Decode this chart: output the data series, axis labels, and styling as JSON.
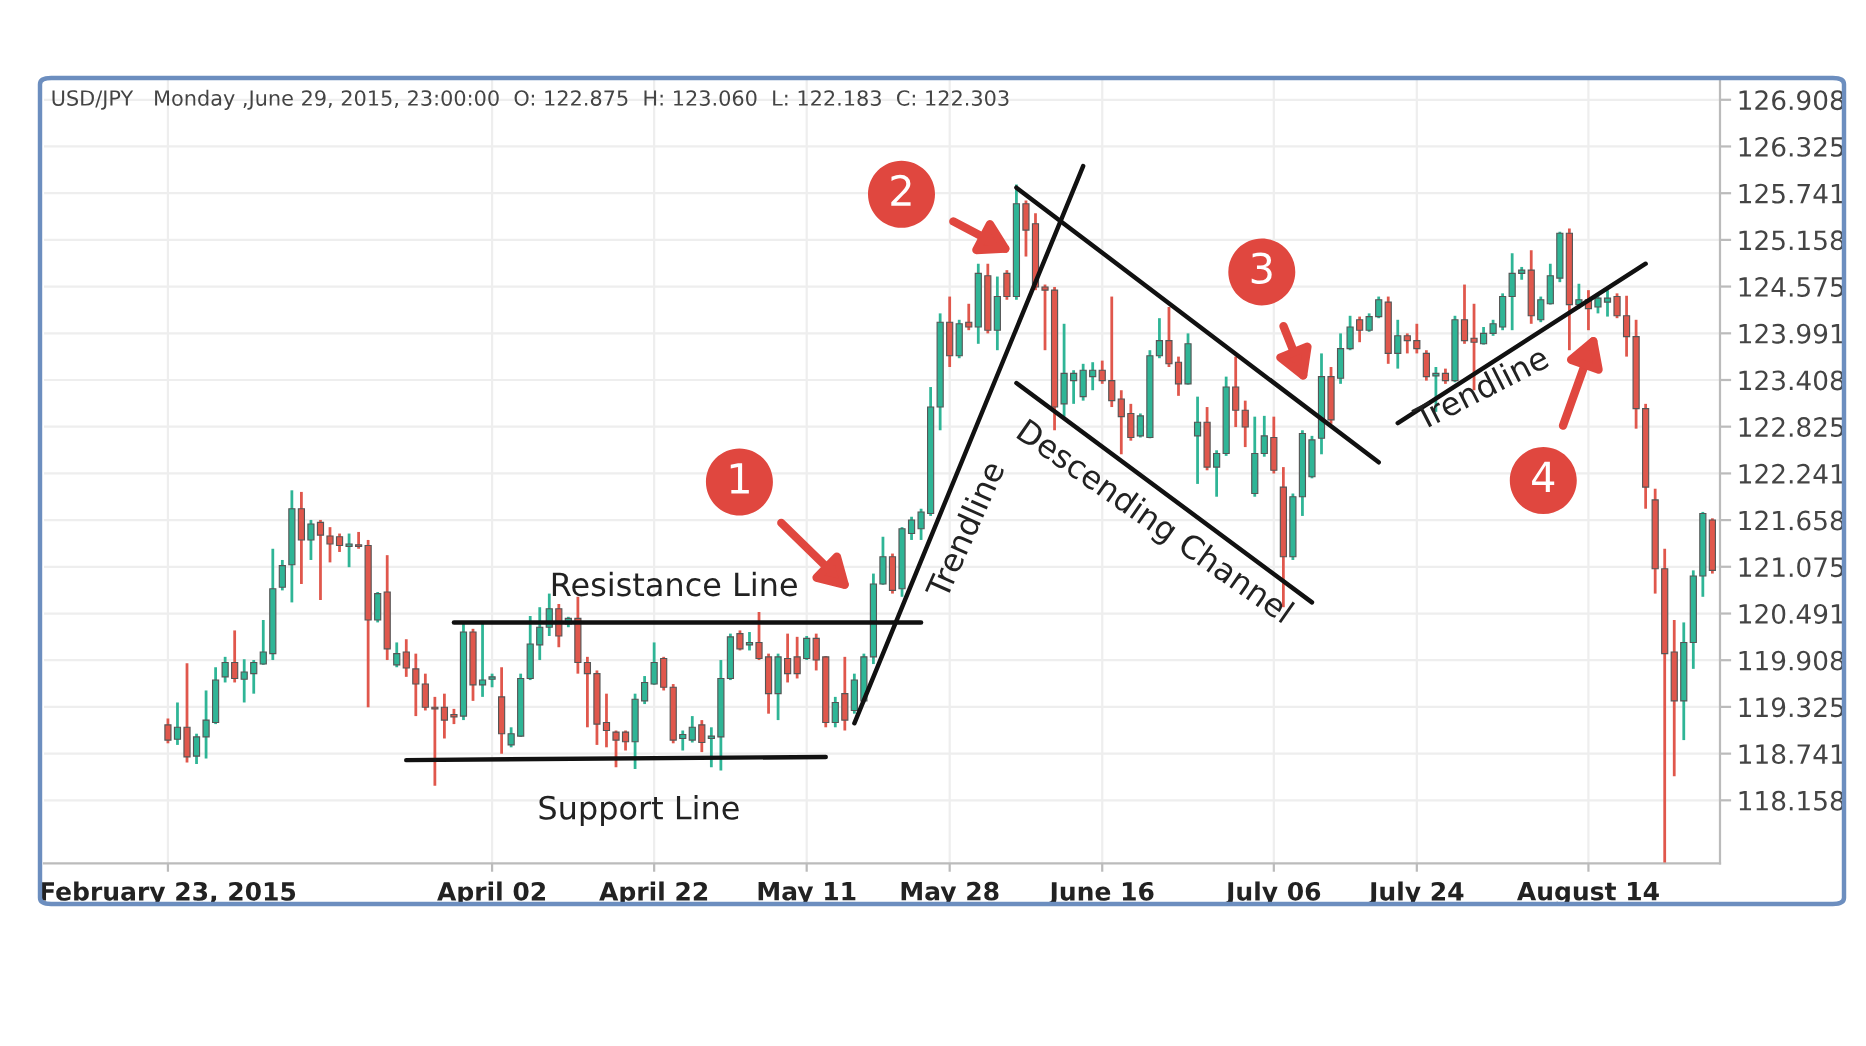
{
  "chart_data": {
    "type": "candlestick",
    "title": "USD/JPY   Monday ,June 29, 2015, 23:00:00  O: 122.875  H: 123.060  L: 122.183  C: 122.303",
    "categories": [
      "February 23, 2015",
      null,
      null,
      null,
      null,
      null,
      null,
      null,
      null,
      null,
      null,
      null,
      null,
      null,
      null,
      null,
      null,
      null,
      null,
      null,
      null,
      null,
      null,
      null,
      null,
      null,
      null,
      null,
      null,
      null,
      null,
      null,
      null,
      null,
      "April 02",
      null,
      null,
      null,
      null,
      null,
      null,
      null,
      null,
      null,
      null,
      null,
      null,
      null,
      null,
      null,
      null,
      "April 22",
      null,
      null,
      null,
      null,
      null,
      null,
      null,
      null,
      null,
      null,
      null,
      null,
      null,
      null,
      null,
      "May 11",
      null,
      null,
      null,
      null,
      null,
      null,
      null,
      null,
      null,
      null,
      null,
      null,
      null,
      null,
      "May 28",
      null,
      null,
      null,
      null,
      null,
      null,
      null,
      null,
      null,
      null,
      null,
      null,
      null,
      null,
      null,
      "June 16",
      null,
      null,
      null,
      null,
      null,
      null,
      null,
      null,
      null,
      null,
      null,
      null,
      null,
      null,
      null,
      null,
      null,
      "July 06",
      null,
      null,
      null,
      null,
      null,
      null,
      null,
      null,
      null,
      null,
      null,
      null,
      null,
      null,
      "July 24",
      null,
      null,
      null,
      null,
      null,
      null,
      null,
      null,
      null,
      null,
      null,
      null,
      null,
      null,
      null,
      null,
      null,
      "August 14",
      null,
      null,
      null,
      null,
      null,
      null,
      null,
      null,
      null,
      null,
      null,
      null,
      null
    ],
    "ohlc": [
      [
        119.1,
        119.18,
        118.87,
        118.91
      ],
      [
        118.92,
        119.38,
        118.85,
        119.07
      ],
      [
        119.07,
        119.87,
        118.63,
        118.7
      ],
      [
        118.71,
        118.99,
        118.61,
        118.95
      ],
      [
        118.95,
        119.53,
        118.68,
        119.16
      ],
      [
        119.13,
        119.82,
        119.11,
        119.66
      ],
      [
        119.7,
        119.95,
        119.63,
        119.88
      ],
      [
        119.88,
        120.28,
        119.63,
        119.68
      ],
      [
        119.67,
        119.92,
        119.38,
        119.76
      ],
      [
        119.74,
        119.91,
        119.49,
        119.88
      ],
      [
        119.86,
        120.41,
        119.85,
        120.01
      ],
      [
        119.99,
        121.3,
        119.91,
        120.8
      ],
      [
        120.82,
        121.16,
        120.78,
        121.09
      ],
      [
        121.1,
        122.03,
        120.63,
        121.8
      ],
      [
        121.8,
        122.01,
        120.86,
        121.41
      ],
      [
        121.41,
        121.66,
        121.16,
        121.61
      ],
      [
        121.63,
        121.66,
        120.66,
        121.47
      ],
      [
        121.46,
        121.57,
        121.13,
        121.36
      ],
      [
        121.45,
        121.49,
        121.26,
        121.34
      ],
      [
        121.33,
        121.49,
        121.07,
        121.36
      ],
      [
        121.35,
        121.51,
        121.3,
        121.33
      ],
      [
        121.34,
        121.41,
        119.32,
        120.41
      ],
      [
        120.41,
        120.76,
        120.38,
        120.74
      ],
      [
        120.76,
        121.22,
        119.91,
        120.05
      ],
      [
        119.85,
        120.13,
        119.82,
        119.99
      ],
      [
        120.01,
        120.17,
        119.7,
        119.81
      ],
      [
        119.8,
        119.99,
        119.21,
        119.61
      ],
      [
        119.61,
        119.74,
        119.28,
        119.32
      ],
      [
        119.32,
        119.45,
        118.34,
        119.3
      ],
      [
        119.32,
        119.49,
        118.93,
        119.16
      ],
      [
        119.23,
        119.3,
        119.11,
        119.2
      ],
      [
        119.21,
        120.36,
        119.16,
        120.26
      ],
      [
        120.26,
        120.3,
        119.4,
        119.6
      ],
      [
        119.6,
        120.36,
        119.45,
        119.66
      ],
      [
        119.67,
        119.74,
        119.57,
        119.7
      ],
      [
        119.45,
        119.82,
        118.74,
        118.99
      ],
      [
        118.85,
        119.07,
        118.82,
        118.99
      ],
      [
        118.96,
        119.74,
        118.95,
        119.68
      ],
      [
        119.68,
        120.46,
        119.66,
        120.11
      ],
      [
        120.1,
        120.57,
        119.91,
        120.32
      ],
      [
        120.32,
        120.74,
        120.21,
        120.55
      ],
      [
        120.55,
        120.61,
        120.07,
        120.21
      ],
      [
        120.36,
        120.45,
        120.32,
        120.43
      ],
      [
        120.43,
        120.7,
        119.74,
        119.88
      ],
      [
        119.88,
        119.95,
        119.07,
        119.74
      ],
      [
        119.74,
        119.78,
        118.85,
        119.11
      ],
      [
        119.13,
        119.49,
        118.82,
        119.03
      ],
      [
        119.01,
        119.03,
        118.57,
        118.91
      ],
      [
        119.01,
        119.03,
        118.78,
        118.89
      ],
      [
        118.89,
        119.49,
        118.55,
        119.42
      ],
      [
        119.4,
        119.71,
        119.36,
        119.63
      ],
      [
        119.61,
        120.13,
        119.6,
        119.88
      ],
      [
        119.93,
        119.95,
        119.53,
        119.57
      ],
      [
        119.57,
        119.61,
        118.87,
        118.91
      ],
      [
        118.93,
        119.03,
        118.78,
        118.98
      ],
      [
        118.91,
        119.21,
        118.88,
        119.07
      ],
      [
        119.1,
        119.16,
        118.76,
        118.88
      ],
      [
        118.93,
        119.07,
        118.57,
        118.96
      ],
      [
        118.95,
        119.91,
        118.53,
        119.68
      ],
      [
        119.68,
        120.24,
        119.66,
        120.2
      ],
      [
        120.24,
        120.28,
        120.03,
        120.05
      ],
      [
        120.1,
        120.26,
        120.03,
        120.13
      ],
      [
        120.13,
        120.51,
        119.91,
        119.93
      ],
      [
        119.95,
        119.99,
        119.24,
        119.49
      ],
      [
        119.49,
        119.99,
        119.16,
        119.95
      ],
      [
        119.93,
        120.24,
        119.63,
        119.74
      ],
      [
        119.95,
        120.2,
        119.68,
        119.74
      ],
      [
        119.93,
        120.21,
        119.91,
        120.18
      ],
      [
        120.18,
        120.24,
        119.78,
        119.91
      ],
      [
        119.95,
        119.96,
        119.07,
        119.13
      ],
      [
        119.13,
        119.45,
        119.07,
        119.38
      ],
      [
        119.49,
        119.95,
        119.03,
        119.16
      ],
      [
        119.28,
        119.74,
        119.24,
        119.66
      ],
      [
        119.4,
        119.99,
        119.38,
        119.95
      ],
      [
        119.95,
        120.99,
        119.86,
        120.86
      ],
      [
        120.86,
        121.45,
        120.85,
        121.2
      ],
      [
        121.2,
        121.24,
        120.74,
        120.78
      ],
      [
        120.8,
        121.57,
        120.7,
        121.55
      ],
      [
        121.49,
        121.7,
        121.41,
        121.66
      ],
      [
        121.55,
        121.8,
        121.41,
        121.76
      ],
      [
        121.74,
        123.32,
        121.71,
        123.07
      ],
      [
        123.07,
        124.24,
        122.78,
        124.13
      ],
      [
        124.13,
        124.45,
        123.57,
        123.71
      ],
      [
        123.71,
        124.16,
        123.68,
        124.11
      ],
      [
        124.13,
        124.36,
        124.03,
        124.07
      ],
      [
        124.07,
        124.86,
        123.86,
        124.74
      ],
      [
        124.71,
        124.86,
        123.99,
        124.03
      ],
      [
        124.03,
        124.7,
        123.78,
        124.45
      ],
      [
        124.74,
        124.78,
        124.41,
        124.45
      ],
      [
        124.45,
        125.85,
        124.41,
        125.61
      ],
      [
        125.61,
        125.65,
        124.95,
        125.28
      ],
      [
        125.36,
        125.49,
        124.53,
        124.57
      ],
      [
        124.57,
        124.6,
        123.78,
        124.53
      ],
      [
        124.53,
        124.57,
        122.78,
        123.07
      ],
      [
        123.11,
        124.11,
        122.95,
        123.49
      ],
      [
        123.4,
        123.53,
        123.11,
        123.49
      ],
      [
        123.2,
        123.61,
        123.15,
        123.53
      ],
      [
        123.45,
        123.63,
        123.28,
        123.53
      ],
      [
        123.53,
        123.65,
        123.36,
        123.4
      ],
      [
        123.4,
        124.45,
        123.07,
        123.15
      ],
      [
        123.17,
        123.28,
        122.48,
        122.95
      ],
      [
        122.99,
        123.11,
        122.65,
        122.69
      ],
      [
        122.71,
        122.99,
        122.69,
        122.96
      ],
      [
        122.69,
        123.78,
        122.68,
        123.71
      ],
      [
        123.71,
        124.18,
        123.68,
        123.9
      ],
      [
        123.9,
        124.32,
        123.57,
        123.61
      ],
      [
        123.63,
        123.7,
        123.21,
        123.36
      ],
      [
        123.36,
        123.99,
        123.35,
        123.86
      ],
      [
        122.71,
        123.2,
        122.11,
        122.88
      ],
      [
        122.88,
        123.07,
        122.28,
        122.32
      ],
      [
        122.32,
        122.53,
        121.95,
        122.49
      ],
      [
        122.49,
        123.45,
        122.46,
        123.32
      ],
      [
        123.32,
        123.7,
        122.82,
        123.03
      ],
      [
        123.03,
        123.15,
        122.57,
        122.82
      ],
      [
        121.99,
        122.95,
        121.95,
        122.49
      ],
      [
        122.49,
        122.96,
        122.45,
        122.71
      ],
      [
        122.69,
        122.95,
        122.24,
        122.28
      ],
      [
        122.07,
        122.32,
        120.57,
        121.2
      ],
      [
        121.2,
        121.99,
        121.16,
        121.95
      ],
      [
        121.95,
        122.78,
        121.71,
        122.74
      ],
      [
        122.2,
        122.71,
        122.18,
        122.66
      ],
      [
        122.68,
        123.74,
        122.48,
        123.45
      ],
      [
        123.45,
        123.57,
        122.86,
        122.91
      ],
      [
        123.43,
        123.99,
        123.36,
        123.8
      ],
      [
        123.8,
        124.21,
        123.78,
        124.07
      ],
      [
        124.16,
        124.2,
        123.88,
        124.03
      ],
      [
        124.03,
        124.24,
        124.01,
        124.2
      ],
      [
        124.2,
        124.45,
        124.18,
        124.41
      ],
      [
        124.38,
        124.45,
        123.61,
        123.74
      ],
      [
        123.74,
        124.16,
        123.55,
        123.96
      ],
      [
        123.96,
        123.99,
        123.74,
        123.9
      ],
      [
        123.9,
        124.11,
        123.74,
        123.8
      ],
      [
        123.74,
        123.78,
        123.4,
        123.45
      ],
      [
        123.46,
        123.57,
        123.01,
        123.49
      ],
      [
        123.49,
        123.55,
        123.36,
        123.4
      ],
      [
        123.4,
        124.21,
        123.38,
        124.16
      ],
      [
        124.16,
        124.6,
        123.86,
        123.9
      ],
      [
        123.93,
        124.36,
        123.28,
        123.88
      ],
      [
        123.86,
        124.07,
        123.85,
        123.99
      ],
      [
        123.99,
        124.16,
        123.96,
        124.11
      ],
      [
        124.07,
        124.49,
        124.03,
        124.45
      ],
      [
        124.45,
        124.99,
        124.03,
        124.74
      ],
      [
        124.74,
        124.82,
        124.66,
        124.78
      ],
      [
        124.78,
        125.03,
        124.11,
        124.21
      ],
      [
        124.16,
        124.45,
        124.13,
        124.41
      ],
      [
        124.36,
        124.86,
        124.35,
        124.71
      ],
      [
        124.68,
        125.26,
        124.63,
        125.24
      ],
      [
        125.24,
        125.3,
        123.78,
        124.35
      ],
      [
        124.35,
        124.61,
        124.3,
        124.41
      ],
      [
        124.41,
        124.53,
        124.03,
        124.3
      ],
      [
        124.32,
        124.46,
        124.24,
        124.43
      ],
      [
        124.38,
        124.53,
        124.2,
        124.43
      ],
      [
        124.45,
        124.49,
        124.18,
        124.21
      ],
      [
        124.21,
        124.46,
        123.7,
        123.95
      ],
      [
        123.95,
        124.16,
        122.8,
        123.05
      ],
      [
        123.05,
        123.11,
        121.8,
        122.07
      ],
      [
        121.91,
        122.05,
        120.74,
        121.05
      ],
      [
        121.05,
        121.3,
        117.38,
        119.99
      ],
      [
        120.01,
        120.41,
        118.46,
        119.4
      ],
      [
        119.4,
        120.38,
        118.91,
        120.13
      ],
      [
        120.13,
        121.03,
        119.8,
        120.96
      ],
      [
        120.96,
        121.76,
        120.7,
        121.74
      ],
      [
        121.66,
        121.68,
        120.99,
        121.03
      ]
    ],
    "series": [
      {
        "type": "line",
        "color": "#111111",
        "values": [
          null,
          null,
          null,
          null,
          null,
          null,
          null,
          null,
          null,
          null,
          null,
          null,
          null,
          null,
          null,
          null,
          null,
          null,
          null,
          null,
          null,
          null,
          null,
          null,
          null,
          null,
          null,
          null,
          null,
          null,
          120.38,
          null,
          null,
          null,
          null,
          null,
          null,
          null,
          null,
          null,
          null,
          null,
          null,
          null,
          null,
          null,
          null,
          null,
          null,
          null,
          null,
          null,
          null,
          null,
          null,
          null,
          null,
          null,
          null,
          null,
          null,
          null,
          null,
          null,
          null,
          null,
          null,
          null,
          null,
          null,
          null,
          null,
          null,
          null,
          null,
          null,
          null,
          null,
          null,
          120.38,
          null,
          null,
          null,
          null,
          null,
          null,
          null,
          null,
          null,
          null,
          null,
          null,
          null,
          null,
          null,
          null,
          null,
          null,
          null,
          null,
          null,
          null,
          null,
          null,
          null,
          null,
          null,
          null,
          null,
          null,
          null,
          null,
          null,
          null,
          null,
          null,
          null,
          null,
          null,
          null,
          null,
          null,
          null,
          null,
          null,
          null,
          null,
          null,
          null,
          null,
          null,
          null,
          null,
          null,
          null,
          null,
          null,
          null,
          null,
          null,
          null,
          null,
          null,
          null,
          null,
          null,
          null,
          null,
          null,
          null,
          null,
          null,
          null,
          null,
          null,
          null,
          null,
          null,
          null,
          null,
          null,
          null,
          null
        ]
      },
      {
        "type": "line",
        "color": "#111111",
        "values": [
          null,
          null,
          null,
          null,
          null,
          null,
          null,
          null,
          null,
          null,
          null,
          null,
          null,
          null,
          null,
          null,
          null,
          null,
          null,
          null,
          null,
          null,
          null,
          null,
          null,
          118.66,
          null,
          null,
          null,
          null,
          null,
          null,
          null,
          null,
          null,
          null,
          null,
          null,
          null,
          null,
          null,
          null,
          null,
          null,
          null,
          null,
          null,
          null,
          null,
          null,
          null,
          null,
          null,
          null,
          null,
          null,
          null,
          null,
          null,
          null,
          null,
          null,
          null,
          null,
          null,
          null,
          null,
          null,
          null,
          118.7,
          null,
          null,
          null,
          null,
          null,
          null,
          null,
          null,
          null,
          null,
          null,
          null,
          null,
          null,
          null,
          null,
          null,
          null,
          null,
          null,
          null,
          null,
          null,
          null,
          null,
          null,
          null,
          null,
          null,
          null,
          null,
          null,
          null,
          null,
          null,
          null,
          null,
          null,
          null,
          null,
          null,
          null,
          null,
          null,
          null,
          null,
          null,
          null,
          null,
          null,
          null,
          null,
          null,
          null,
          null,
          null,
          null,
          null,
          null,
          null,
          null,
          null,
          null,
          null,
          null,
          null,
          null,
          null,
          null,
          null,
          null,
          null,
          null,
          null,
          null,
          null,
          null,
          null,
          null,
          null,
          null,
          null,
          null,
          null,
          null,
          null,
          null,
          null,
          null,
          null,
          null,
          null,
          null
        ]
      },
      {
        "type": "line",
        "color": "#111111",
        "values": [
          null,
          null,
          null,
          null,
          null,
          null,
          null,
          null,
          null,
          null,
          null,
          null,
          null,
          null,
          null,
          null,
          null,
          null,
          null,
          null,
          null,
          null,
          null,
          null,
          null,
          null,
          null,
          null,
          null,
          null,
          null,
          null,
          null,
          null,
          null,
          null,
          null,
          null,
          null,
          null,
          null,
          null,
          null,
          null,
          null,
          null,
          null,
          null,
          null,
          null,
          null,
          null,
          null,
          null,
          null,
          null,
          null,
          null,
          null,
          null,
          null,
          null,
          null,
          null,
          null,
          null,
          null,
          null,
          null,
          null,
          null,
          null,
          119.12,
          null,
          null,
          null,
          null,
          null,
          null,
          null,
          null,
          null,
          null,
          null,
          null,
          null,
          null,
          null,
          null,
          null,
          null,
          null,
          null,
          null,
          null,
          null,
          126.08,
          null,
          null,
          null,
          null,
          null,
          null,
          null,
          null,
          null,
          null,
          null,
          null,
          null,
          null,
          null,
          null,
          null,
          null,
          null,
          null,
          null,
          null,
          null,
          null,
          null,
          null,
          null,
          null,
          null,
          null,
          null,
          null,
          null,
          null,
          null,
          null,
          null,
          null,
          null,
          null,
          null,
          null,
          null,
          null,
          null,
          null,
          null,
          null,
          null,
          null,
          null,
          null,
          null,
          null,
          null,
          null,
          null,
          null,
          null,
          null,
          null,
          null,
          null,
          null,
          null,
          null
        ]
      },
      {
        "type": "line",
        "color": "#111111",
        "values": [
          null,
          null,
          null,
          null,
          null,
          null,
          null,
          null,
          null,
          null,
          null,
          null,
          null,
          null,
          null,
          null,
          null,
          null,
          null,
          null,
          null,
          null,
          null,
          null,
          null,
          null,
          null,
          null,
          null,
          null,
          null,
          null,
          null,
          null,
          null,
          null,
          null,
          null,
          null,
          null,
          null,
          null,
          null,
          null,
          null,
          null,
          null,
          null,
          null,
          null,
          null,
          null,
          null,
          null,
          null,
          null,
          null,
          null,
          null,
          null,
          null,
          null,
          null,
          null,
          null,
          null,
          null,
          null,
          null,
          null,
          null,
          null,
          null,
          null,
          null,
          null,
          null,
          null,
          null,
          null,
          null,
          null,
          null,
          null,
          null,
          null,
          null,
          null,
          null,
          125.81,
          null,
          null,
          null,
          null,
          null,
          null,
          null,
          null,
          null,
          null,
          null,
          null,
          null,
          null,
          null,
          null,
          null,
          null,
          null,
          null,
          null,
          null,
          null,
          null,
          null,
          null,
          null,
          null,
          null,
          null,
          null,
          null,
          null,
          null,
          null,
          null,
          null,
          122.38,
          null,
          null,
          null,
          null,
          null,
          null,
          null,
          null,
          null,
          null,
          null,
          null,
          null,
          null,
          null,
          null,
          null,
          null,
          null,
          null,
          null,
          null,
          null,
          null,
          null,
          null,
          null,
          null,
          null,
          null,
          null,
          null,
          null,
          null,
          null
        ]
      },
      {
        "type": "line",
        "color": "#111111",
        "values": [
          null,
          null,
          null,
          null,
          null,
          null,
          null,
          null,
          null,
          null,
          null,
          null,
          null,
          null,
          null,
          null,
          null,
          null,
          null,
          null,
          null,
          null,
          null,
          null,
          null,
          null,
          null,
          null,
          null,
          null,
          null,
          null,
          null,
          null,
          null,
          null,
          null,
          null,
          null,
          null,
          null,
          null,
          null,
          null,
          null,
          null,
          null,
          null,
          null,
          null,
          null,
          null,
          null,
          null,
          null,
          null,
          null,
          null,
          null,
          null,
          null,
          null,
          null,
          null,
          null,
          null,
          null,
          null,
          null,
          null,
          null,
          null,
          null,
          null,
          null,
          null,
          null,
          null,
          null,
          null,
          null,
          null,
          null,
          null,
          null,
          null,
          null,
          null,
          null,
          123.37,
          null,
          null,
          null,
          null,
          null,
          null,
          null,
          null,
          null,
          null,
          null,
          null,
          null,
          null,
          null,
          null,
          null,
          null,
          null,
          null,
          null,
          null,
          null,
          null,
          null,
          null,
          null,
          null,
          null,
          null,
          120.63,
          null,
          null,
          null,
          null,
          null,
          null,
          null,
          null,
          null,
          null,
          null,
          null,
          null,
          null,
          null,
          null,
          null,
          null,
          null,
          null,
          null,
          null,
          null,
          null,
          null,
          null,
          null,
          null,
          null,
          null,
          null,
          null,
          null,
          null,
          null,
          null,
          null,
          null,
          null,
          null,
          null,
          null
        ]
      },
      {
        "type": "line",
        "color": "#111111",
        "values": [
          null,
          null,
          null,
          null,
          null,
          null,
          null,
          null,
          null,
          null,
          null,
          null,
          null,
          null,
          null,
          null,
          null,
          null,
          null,
          null,
          null,
          null,
          null,
          null,
          null,
          null,
          null,
          null,
          null,
          null,
          null,
          null,
          null,
          null,
          null,
          null,
          null,
          null,
          null,
          null,
          null,
          null,
          null,
          null,
          null,
          null,
          null,
          null,
          null,
          null,
          null,
          null,
          null,
          null,
          null,
          null,
          null,
          null,
          null,
          null,
          null,
          null,
          null,
          null,
          null,
          null,
          null,
          null,
          null,
          null,
          null,
          null,
          null,
          null,
          null,
          null,
          null,
          null,
          null,
          null,
          null,
          null,
          null,
          null,
          null,
          null,
          null,
          null,
          null,
          null,
          null,
          null,
          null,
          null,
          null,
          null,
          null,
          null,
          null,
          null,
          null,
          null,
          null,
          null,
          null,
          null,
          null,
          null,
          null,
          null,
          null,
          null,
          null,
          null,
          null,
          null,
          null,
          null,
          null,
          null,
          null,
          null,
          null,
          null,
          null,
          null,
          null,
          null,
          null,
          122.87,
          null,
          null,
          null,
          null,
          null,
          null,
          null,
          null,
          null,
          null,
          null,
          null,
          null,
          null,
          null,
          null,
          null,
          null,
          null,
          null,
          null,
          null,
          null,
          null,
          null,
          124.86,
          null,
          null,
          null,
          null,
          null,
          null,
          null
        ]
      }
    ],
    "annotations": [
      "Resistance Line",
      "Support Line",
      "Trendline",
      "Descending Channel",
      "Trendline",
      "1",
      "2",
      "3",
      "4"
    ],
    "ylim": [
      117.37,
      127.18
    ],
    "yticks": [
      126.908,
      126.325,
      125.741,
      125.158,
      124.575,
      123.991,
      123.408,
      122.825,
      122.241,
      121.658,
      121.075,
      120.491,
      119.908,
      119.325,
      118.741,
      118.158
    ],
    "grid": true,
    "legend": false
  }
}
